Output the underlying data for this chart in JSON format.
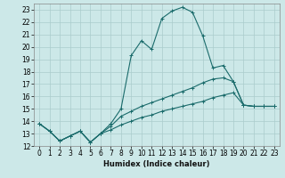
{
  "title": "",
  "xlabel": "Humidex (Indice chaleur)",
  "bg_color": "#cce8e8",
  "grid_color": "#aacccc",
  "line_color": "#1a6b6b",
  "xlim": [
    -0.5,
    23.5
  ],
  "ylim": [
    12,
    23.5
  ],
  "xticks": [
    0,
    1,
    2,
    3,
    4,
    5,
    6,
    7,
    8,
    9,
    10,
    11,
    12,
    13,
    14,
    15,
    16,
    17,
    18,
    19,
    20,
    21,
    22,
    23
  ],
  "yticks": [
    12,
    13,
    14,
    15,
    16,
    17,
    18,
    19,
    20,
    21,
    22,
    23
  ],
  "series": [
    {
      "x": [
        0,
        1,
        2,
        3,
        4,
        5,
        6,
        7,
        8,
        9,
        10,
        11,
        12,
        13,
        14,
        15,
        16,
        17,
        18,
        19,
        20,
        21,
        22,
        23
      ],
      "y": [
        13.8,
        13.2,
        12.4,
        12.8,
        13.2,
        12.3,
        13.0,
        13.8,
        15.0,
        19.3,
        20.5,
        19.8,
        22.3,
        22.9,
        23.2,
        22.8,
        20.9,
        18.3,
        18.5,
        17.2,
        15.3,
        15.2,
        15.2,
        15.2
      ]
    },
    {
      "x": [
        0,
        1,
        2,
        3,
        4,
        5,
        6,
        7,
        8,
        9,
        10,
        11,
        12,
        13,
        14,
        15,
        16,
        17,
        18,
        19,
        20,
        21,
        22,
        23
      ],
      "y": [
        13.8,
        13.2,
        12.4,
        12.8,
        13.2,
        12.3,
        13.0,
        13.6,
        14.4,
        14.8,
        15.2,
        15.5,
        15.8,
        16.1,
        16.4,
        16.7,
        17.1,
        17.4,
        17.5,
        17.2,
        15.3,
        15.2,
        15.2,
        15.2
      ]
    },
    {
      "x": [
        0,
        1,
        2,
        3,
        4,
        5,
        6,
        7,
        8,
        9,
        10,
        11,
        12,
        13,
        14,
        15,
        16,
        17,
        18,
        19,
        20,
        21,
        22,
        23
      ],
      "y": [
        13.8,
        13.2,
        12.4,
        12.8,
        13.2,
        12.3,
        13.0,
        13.3,
        13.7,
        14.0,
        14.3,
        14.5,
        14.8,
        15.0,
        15.2,
        15.4,
        15.6,
        15.9,
        16.1,
        16.3,
        15.3,
        15.2,
        15.2,
        15.2
      ]
    }
  ]
}
